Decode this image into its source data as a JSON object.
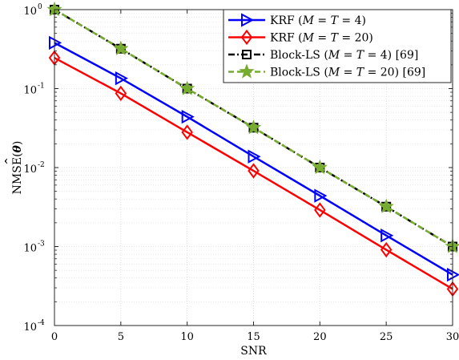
{
  "chart_data": {
    "type": "line",
    "xlabel": "SNR",
    "ylabel": "NMSE(θ̂)",
    "ylabel_main": "NMSE(",
    "ylabel_theta": "θ",
    "ylabel_close": ")",
    "xlim": [
      0,
      30
    ],
    "ylim": [
      0.0001,
      1
    ],
    "yscale": "log",
    "grid": true,
    "legend_position": "top-right",
    "x": [
      0,
      5,
      10,
      15,
      20,
      25,
      30
    ],
    "x_tick_labels": [
      "0",
      "5",
      "10",
      "15",
      "20",
      "25",
      "30"
    ],
    "y_tick_labels": [
      {
        "value": 1,
        "base": "10",
        "exp": "0"
      },
      {
        "value": 0.1,
        "base": "10",
        "exp": "-1"
      },
      {
        "value": 0.01,
        "base": "10",
        "exp": "-2"
      },
      {
        "value": 0.001,
        "base": "10",
        "exp": "-3"
      },
      {
        "value": 0.0001,
        "base": "10",
        "exp": "-4"
      }
    ],
    "series": [
      {
        "name": "KRF (M = T = 4)",
        "legend_parts": [
          "KRF (",
          "M",
          " = ",
          "T",
          " = 4)"
        ],
        "color": "#0000ff",
        "marker": "triangle-right",
        "line_style": "solid",
        "values": [
          0.38,
          0.135,
          0.044,
          0.0138,
          0.0044,
          0.00138,
          0.00044
        ]
      },
      {
        "name": "KRF (M = T = 20)",
        "legend_parts": [
          "KRF (",
          "M",
          " = ",
          "T",
          " = 20)"
        ],
        "color": "#ff0000",
        "marker": "diamond",
        "line_style": "solid",
        "values": [
          0.245,
          0.087,
          0.028,
          0.0091,
          0.0029,
          0.00091,
          0.00029
        ]
      },
      {
        "name": "Block-LS (M = T = 4) [69]",
        "legend_parts": [
          "Block-LS (",
          "M",
          " = ",
          "T",
          " = 4) [69]"
        ],
        "color": "#000000",
        "marker": "square",
        "line_style": "dashdot",
        "values": [
          1.0,
          0.32,
          0.1,
          0.032,
          0.01,
          0.0032,
          0.001
        ]
      },
      {
        "name": "Block-LS (M = T = 20) [69]",
        "legend_parts": [
          "Block-LS (",
          "M",
          " = ",
          "T",
          " = 20) [69]"
        ],
        "color": "#77ac30",
        "marker": "star",
        "line_style": "dashed",
        "values": [
          1.0,
          0.32,
          0.1,
          0.032,
          0.01,
          0.0032,
          0.001
        ]
      }
    ]
  }
}
